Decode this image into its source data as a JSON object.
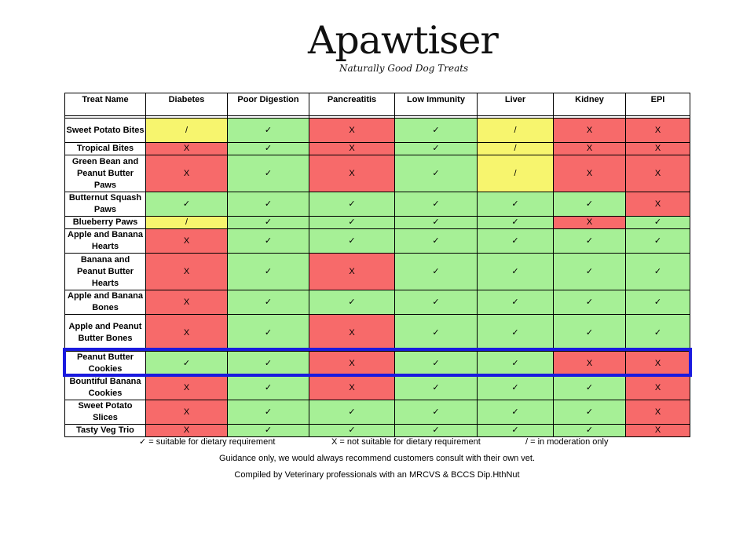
{
  "header": {
    "brand": "Apawtiser",
    "tagline": "Naturally Good Dog Treats"
  },
  "table": {
    "columns": [
      "Treat Name",
      "Diabetes",
      "Poor Digestion",
      "Pancreatitis",
      "Low Immunity",
      "Liver",
      "Kidney",
      "EPI"
    ],
    "rows": [
      {
        "name": "Sweet Potato Bites",
        "values": [
          "/",
          "✓",
          "X",
          "✓",
          "/",
          "X",
          "X"
        ]
      },
      {
        "name": "Tropical Bites",
        "values": [
          "X",
          "✓",
          "X",
          "✓",
          "/",
          "X",
          "X"
        ]
      },
      {
        "name": "Green Bean and Peanut Butter Paws",
        "values": [
          "X",
          "✓",
          "X",
          "✓",
          "/",
          "X",
          "X"
        ]
      },
      {
        "name": "Butternut Squash Paws",
        "values": [
          "✓",
          "✓",
          "✓",
          "✓",
          "✓",
          "✓",
          "X"
        ]
      },
      {
        "name": "Blueberry Paws",
        "values": [
          "/",
          "✓",
          "✓",
          "✓",
          "✓",
          "X",
          "✓"
        ]
      },
      {
        "name": "Apple and Banana Hearts",
        "values": [
          "X",
          "✓",
          "✓",
          "✓",
          "✓",
          "✓",
          "✓"
        ]
      },
      {
        "name": "Banana and Peanut Butter Hearts",
        "values": [
          "X",
          "✓",
          "X",
          "✓",
          "✓",
          "✓",
          "✓"
        ]
      },
      {
        "name": "Apple and Banana Bones",
        "values": [
          "X",
          "✓",
          "✓",
          "✓",
          "✓",
          "✓",
          "✓"
        ]
      },
      {
        "name": "Apple and Peanut Butter Bones",
        "values": [
          "X",
          "✓",
          "X",
          "✓",
          "✓",
          "✓",
          "✓"
        ]
      },
      {
        "name": "Peanut Butter Cookies",
        "values": [
          "✓",
          "✓",
          "X",
          "✓",
          "✓",
          "X",
          "X"
        ]
      },
      {
        "name": "Bountiful Banana Cookies",
        "values": [
          "X",
          "✓",
          "X",
          "✓",
          "✓",
          "✓",
          "X"
        ]
      },
      {
        "name": "Sweet Potato Slices",
        "values": [
          "X",
          "✓",
          "✓",
          "✓",
          "✓",
          "✓",
          "X"
        ]
      },
      {
        "name": "Tasty Veg Trio",
        "values": [
          "X",
          "✓",
          "✓",
          "✓",
          "✓",
          "✓",
          "X"
        ]
      }
    ],
    "highlighted_row": "Peanut Butter Cookies"
  },
  "legend": {
    "suitable": "✓ = suitable for dietary requirement",
    "not_suitable": "X = not suitable for dietary requirement",
    "moderation": "/ = in moderation only"
  },
  "notes": {
    "guidance": "Guidance only, we would always recommend customers consult with their own vet.",
    "compiled": "Compiled by Veterinary professionals with an MRCVS & BCCS Dip.HthNut"
  },
  "colors": {
    "suitable": "#a6f096",
    "not_suitable": "#f76a6a",
    "moderation": "#f7f56e",
    "highlight": "#1a1adf"
  }
}
